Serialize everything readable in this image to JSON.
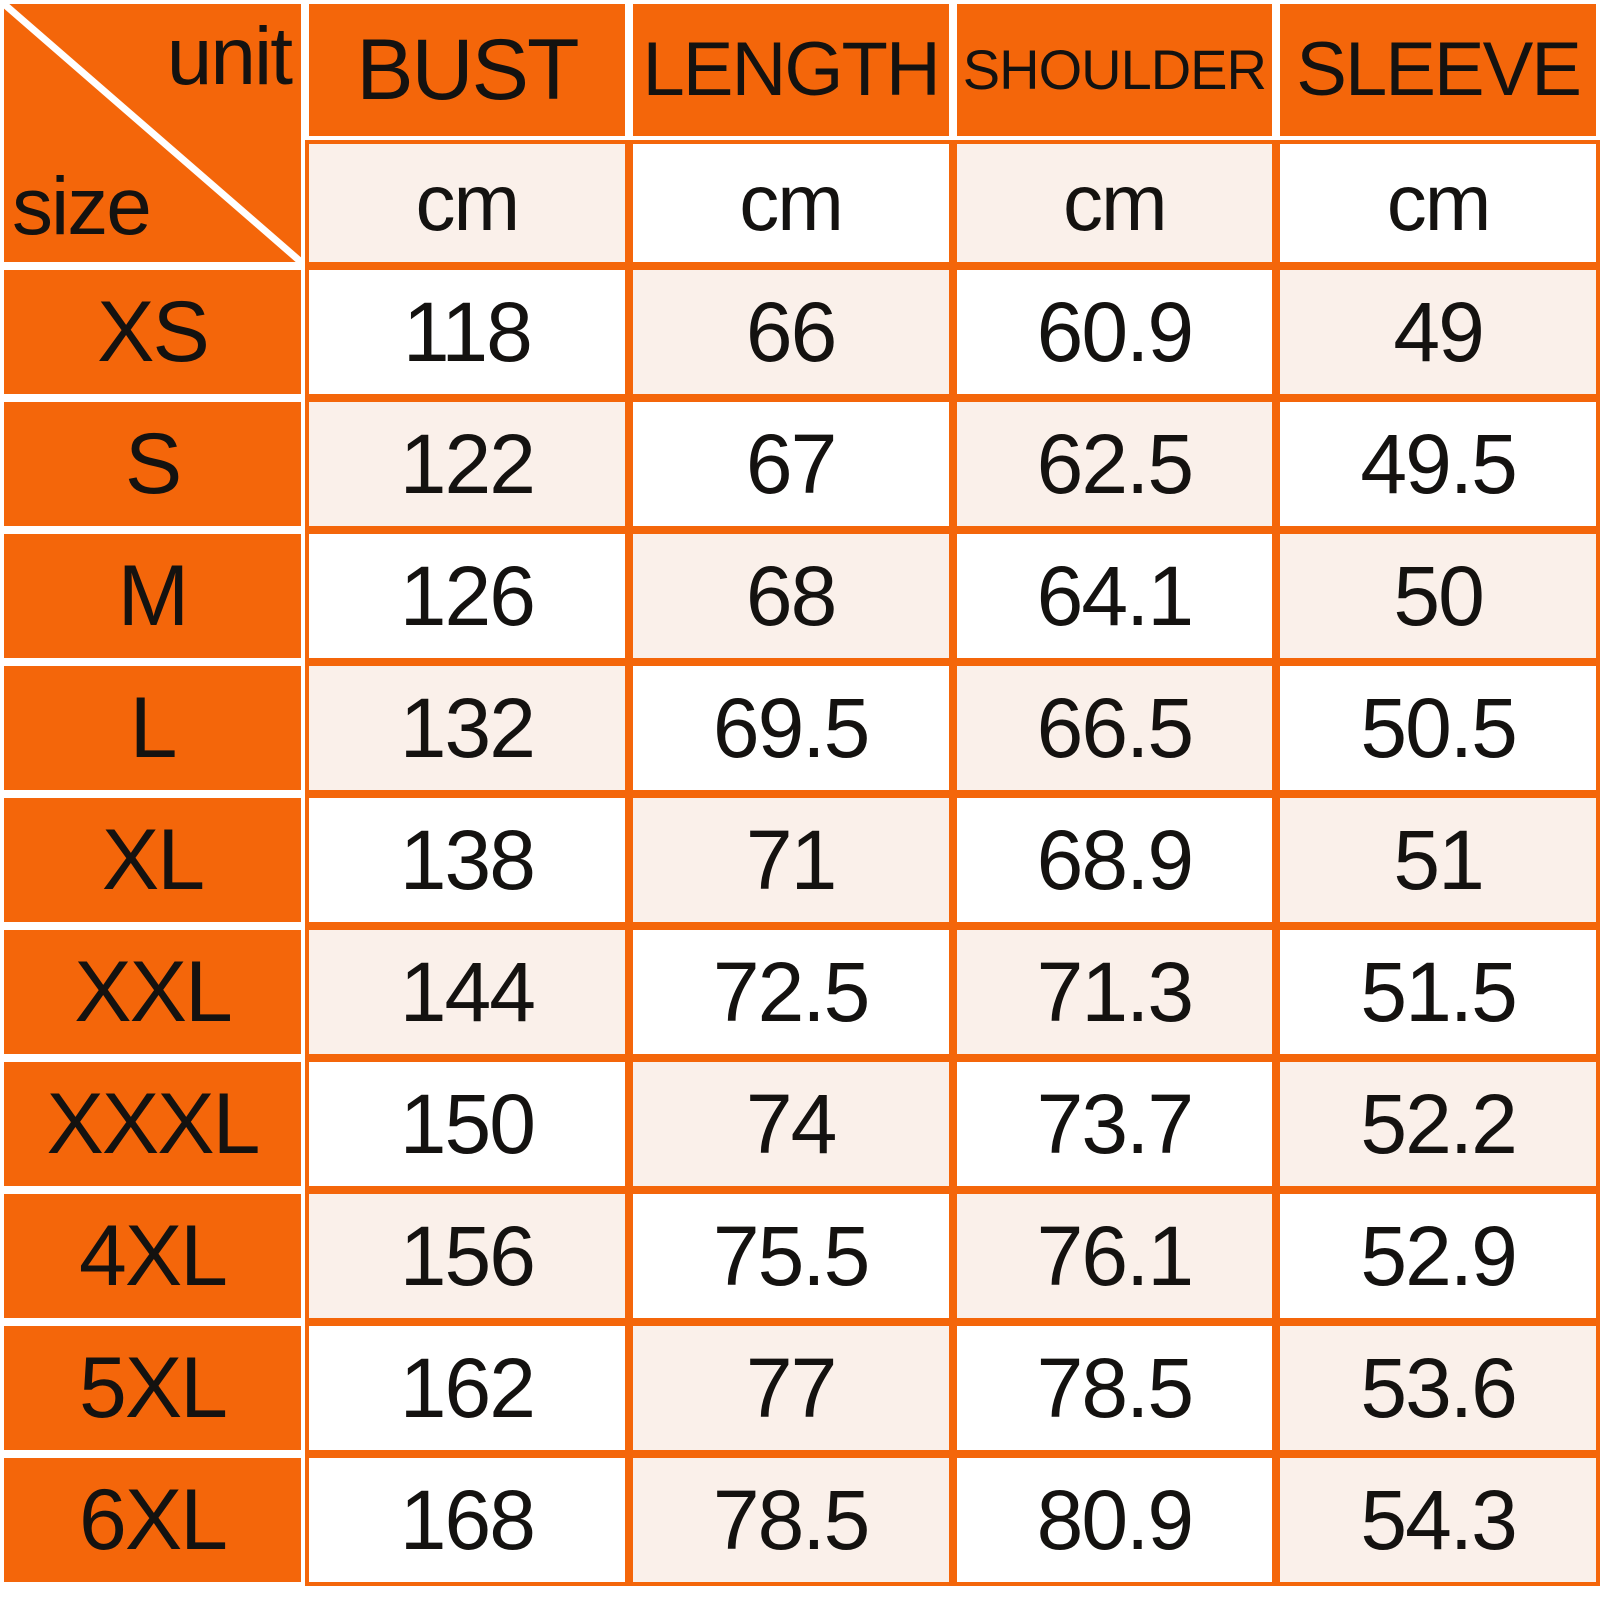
{
  "chart_data": {
    "type": "table",
    "corner": {
      "top_right_label": "unit",
      "bottom_left_label": "size"
    },
    "columns": [
      {
        "key": "bust",
        "label": "BUST",
        "unit": "cm"
      },
      {
        "key": "length",
        "label": "LENGTH",
        "unit": "cm"
      },
      {
        "key": "shoulder",
        "label": "SHOULDER",
        "unit": "cm"
      },
      {
        "key": "sleeve",
        "label": "SLEEVE",
        "unit": "cm"
      }
    ],
    "rows": [
      {
        "size": "XS",
        "values": [
          118,
          66,
          60.9,
          49
        ]
      },
      {
        "size": "S",
        "values": [
          122,
          67,
          62.5,
          49.5
        ]
      },
      {
        "size": "M",
        "values": [
          126,
          68,
          64.1,
          50
        ]
      },
      {
        "size": "L",
        "values": [
          132,
          69.5,
          66.5,
          50.5
        ]
      },
      {
        "size": "XL",
        "values": [
          138,
          71,
          68.9,
          51
        ]
      },
      {
        "size": "XXL",
        "values": [
          144,
          72.5,
          71.3,
          51.5
        ]
      },
      {
        "size": "XXXL",
        "values": [
          150,
          74,
          73.7,
          52.2
        ]
      },
      {
        "size": "4XL",
        "values": [
          156,
          75.5,
          76.1,
          52.9
        ]
      },
      {
        "size": "5XL",
        "values": [
          162,
          77,
          78.5,
          53.6
        ]
      },
      {
        "size": "6XL",
        "values": [
          168,
          78.5,
          80.9,
          54.3
        ]
      }
    ]
  },
  "style": {
    "orange": "#f4660a",
    "cream": "#faf0ea",
    "white": "#ffffff",
    "text_color": "#141210",
    "unit_row_shades": [
      "cream",
      "white",
      "cream",
      "white"
    ],
    "row_shades": [
      [
        "white",
        "cream",
        "white",
        "cream"
      ],
      [
        "cream",
        "white",
        "cream",
        "white"
      ],
      [
        "white",
        "cream",
        "white",
        "cream"
      ],
      [
        "cream",
        "white",
        "cream",
        "white"
      ],
      [
        "white",
        "cream",
        "white",
        "cream"
      ],
      [
        "cream",
        "white",
        "cream",
        "white"
      ],
      [
        "white",
        "cream",
        "white",
        "cream"
      ],
      [
        "cream",
        "white",
        "cream",
        "white"
      ],
      [
        "white",
        "cream",
        "white",
        "cream"
      ],
      [
        "white",
        "cream",
        "white",
        "cream"
      ]
    ]
  }
}
